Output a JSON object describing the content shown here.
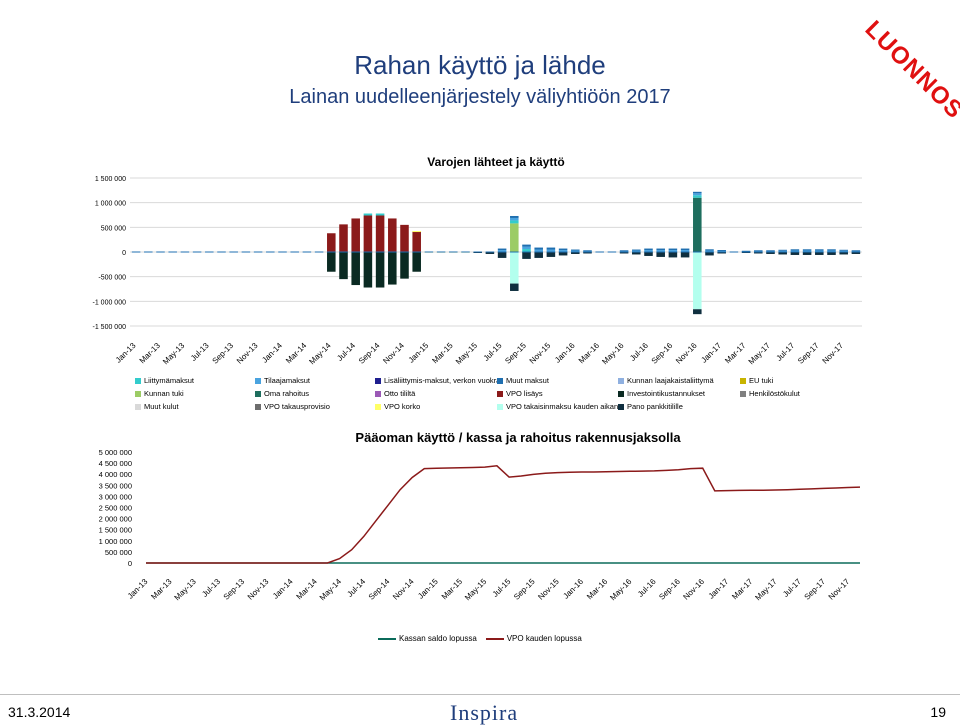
{
  "slide": {
    "title": "Rahan käyttö ja lähde",
    "subtitle": "Lainan uudelleenjärjestely väliyhtiöön 2017",
    "stamp": "LUONNOS",
    "date": "31.3.2014",
    "logo": "Inspira",
    "page_number": "19"
  },
  "colors": {
    "title": "#1f3e7c",
    "stamp": "#e01010",
    "line_main": "#8b1a1a",
    "line_secondary": "#0b6b5a"
  },
  "chart_data": [
    {
      "type": "bar",
      "stacked": true,
      "title": "Varojen lähteet ja käyttö",
      "ylim": [
        -1500000,
        1500000
      ],
      "yticks": [
        "1 500 000",
        "1 000 000",
        "500 000",
        "0",
        "-500 000",
        "-1 000 000",
        "-1 500 000"
      ],
      "ytick_values": [
        1500000,
        1000000,
        500000,
        0,
        -500000,
        -1000000,
        -1500000
      ],
      "grid": true,
      "x_tick_labels": [
        "Jan-13",
        "Mar-13",
        "May-13",
        "Jul-13",
        "Sep-13",
        "Nov-13",
        "Jan-14",
        "Mar-14",
        "May-14",
        "Jul-14",
        "Sep-14",
        "Nov-14",
        "Jan-15",
        "Mar-15",
        "May-15",
        "Jul-15",
        "Sep-15",
        "Nov-15",
        "Jan-16",
        "Mar-16",
        "May-16",
        "Jul-16",
        "Sep-16",
        "Nov-16",
        "Jan-17",
        "Mar-17",
        "May-17",
        "Jul-17",
        "Sep-17",
        "Nov-17"
      ],
      "legend_position": "bottom",
      "legend": [
        {
          "name": "Liittymämaksut",
          "color": "#33cccc"
        },
        {
          "name": "Tilaajamaksut",
          "color": "#4aa3df"
        },
        {
          "name": "Lisäliittymis-maksut, verkon vuokrat",
          "color": "#1f1f8f"
        },
        {
          "name": "Muut maksut",
          "color": "#1f6fb0"
        },
        {
          "name": "Kunnan laajakaistaliittymä",
          "color": "#8fb0e0"
        },
        {
          "name": "EU tuki",
          "color": "#c8b400"
        },
        {
          "name": "Kunnan tuki",
          "color": "#9ccc65"
        },
        {
          "name": "Oma rahoitus",
          "color": "#1e6e5e"
        },
        {
          "name": "Otto tililtä",
          "color": "#9b59b6"
        },
        {
          "name": "VPO lisäys",
          "color": "#8b1a1a"
        },
        {
          "name": "Investointikustannukset",
          "color": "#0a2a22"
        },
        {
          "name": "Henkilöstökulut",
          "color": "#808080"
        },
        {
          "name": "Muut kulut",
          "color": "#d9d9d9"
        },
        {
          "name": "VPO takausprovisio",
          "color": "#6d6d6d"
        },
        {
          "name": "VPO korko",
          "color": "#ffff66"
        },
        {
          "name": "VPO takaisinmaksu kauden aikana",
          "color": "#b3ffee"
        },
        {
          "name": "Pano pankkitilille",
          "color": "#0f2f3f"
        }
      ],
      "months": 60,
      "series_values": {
        "VPO lisäys": {
          "16": 380000,
          "17": 560000,
          "18": 680000,
          "19": 740000,
          "20": 740000,
          "21": 680000,
          "22": 550000,
          "23": 420000
        },
        "Investointikustannukset": {
          "16": -400000,
          "17": -550000,
          "18": -670000,
          "19": -720000,
          "20": -720000,
          "21": -660000,
          "22": -540000,
          "23": -400000
        },
        "Kunnan tuki": {
          "31": 580000
        },
        "Oma rahoitus": {
          "46": 1100000
        },
        "VPO takaisinmaksu kauden aikana": {
          "31": -640000,
          "46": -1160000
        },
        "Liittymämaksut": {
          "19": 40000,
          "20": 40000,
          "31": 60000,
          "32": 60000,
          "46": 50000
        },
        "Tilaajamaksut": {
          "30": 40000,
          "31": 50000,
          "32": 50000,
          "33": 50000,
          "34": 50000,
          "35": 40000,
          "36": 30000,
          "37": 20000,
          "40": 20000,
          "41": 30000,
          "42": 40000,
          "43": 40000,
          "44": 40000,
          "45": 40000,
          "46": 40000,
          "47": 30000,
          "48": 20000,
          "50": 15000,
          "51": 20000,
          "52": 20000,
          "53": 25000,
          "54": 30000,
          "55": 30000,
          "56": 30000,
          "57": 30000,
          "58": 25000,
          "59": 20000
        },
        "Muut maksut": {
          "30": 30000,
          "31": 40000,
          "32": 40000,
          "33": 40000,
          "34": 40000,
          "35": 30000,
          "36": 20000,
          "37": 15000,
          "40": 15000,
          "41": 20000,
          "42": 30000,
          "43": 30000,
          "44": 30000,
          "45": 30000,
          "46": 30000,
          "47": 25000,
          "48": 20000,
          "50": 10000,
          "51": 15000,
          "52": 15000,
          "53": 20000,
          "54": 25000,
          "55": 25000,
          "56": 25000,
          "57": 25000,
          "58": 20000,
          "59": 15000
        },
        "Pano pankkitilille": {
          "28": -20000,
          "29": -40000,
          "30": -120000,
          "31": -150000,
          "32": -140000,
          "33": -120000,
          "34": -100000,
          "35": -70000,
          "36": -40000,
          "37": -30000,
          "40": -30000,
          "41": -50000,
          "42": -80000,
          "43": -100000,
          "44": -110000,
          "45": -110000,
          "46": -100000,
          "47": -70000,
          "48": -30000,
          "50": -20000,
          "51": -30000,
          "52": -40000,
          "53": -50000,
          "54": -60000,
          "55": -60000,
          "56": -60000,
          "57": -60000,
          "58": -50000,
          "59": -40000
        },
        "VPO korko": {
          "23": 5000,
          "24": 8000,
          "25": 8000,
          "26": 8000,
          "27": 8000
        }
      }
    },
    {
      "type": "line",
      "title": "Pääoman käyttö / kassa ja rahoitus rakennusjaksolla",
      "ylim": [
        0,
        5000000
      ],
      "yticks": [
        "5 000 000",
        "4 500 000",
        "4 000 000",
        "3 500 000",
        "3 000 000",
        "2 500 000",
        "2 000 000",
        "1 500 000",
        "1 000 000",
        "500 000",
        "0"
      ],
      "ytick_values": [
        5000000,
        4500000,
        4000000,
        3500000,
        3000000,
        2500000,
        2000000,
        1500000,
        1000000,
        500000,
        0
      ],
      "grid": false,
      "x_tick_labels": [
        "Jan-13",
        "Mar-13",
        "May-13",
        "Jul-13",
        "Sep-13",
        "Nov-13",
        "Jan-14",
        "Mar-14",
        "May-14",
        "Jul-14",
        "Sep-14",
        "Nov-14",
        "Jan-15",
        "Mar-15",
        "May-15",
        "Jul-15",
        "Sep-15",
        "Nov-15",
        "Jan-16",
        "Mar-16",
        "May-16",
        "Jul-16",
        "Sep-16",
        "Nov-16",
        "Jan-17",
        "Mar-17",
        "May-17",
        "Jul-17",
        "Sep-17",
        "Nov-17"
      ],
      "legend_position": "bottom",
      "series": [
        {
          "name": "Kassan saldo lopussa",
          "color": "#0b6b5a",
          "values": [
            0,
            0,
            0,
            0,
            0,
            0,
            0,
            0,
            0,
            0,
            0,
            0,
            0,
            0,
            0,
            0,
            0,
            0,
            0,
            0,
            0,
            0,
            0,
            0,
            0,
            0,
            0,
            0,
            0,
            0,
            0,
            0,
            0,
            0,
            0,
            0,
            0,
            0,
            0,
            0,
            0,
            0,
            0,
            0,
            0,
            0,
            0,
            0,
            0,
            0,
            0,
            0,
            0,
            0,
            0,
            0,
            0,
            0,
            0,
            0
          ]
        },
        {
          "name": "VPO kauden lopussa",
          "color": "#8b1a1a",
          "values": [
            0,
            0,
            0,
            0,
            0,
            0,
            0,
            0,
            0,
            0,
            0,
            0,
            0,
            0,
            0,
            0,
            200000,
            600000,
            1200000,
            1900000,
            2600000,
            3300000,
            3850000,
            4250000,
            4270000,
            4280000,
            4290000,
            4300000,
            4320000,
            4380000,
            3870000,
            3920000,
            3990000,
            4040000,
            4070000,
            4090000,
            4100000,
            4100000,
            4110000,
            4120000,
            4130000,
            4140000,
            4150000,
            4170000,
            4200000,
            4250000,
            4270000,
            3250000,
            3260000,
            3270000,
            3275000,
            3280000,
            3290000,
            3300000,
            3320000,
            3340000,
            3360000,
            3380000,
            3400000,
            3420000
          ]
        }
      ]
    }
  ]
}
